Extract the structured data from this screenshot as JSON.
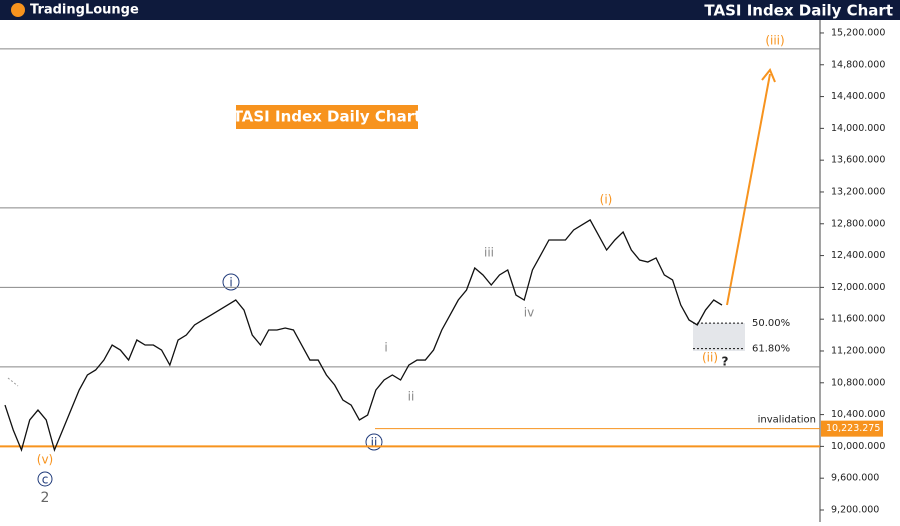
{
  "header": {
    "logo": "TradingLounge",
    "title": "TASI Index Daily Chart"
  },
  "chart_data": {
    "type": "line",
    "title": "TASI Index Daily Chart",
    "series": [
      {
        "color": "#111111",
        "values": [
          10520,
          10206,
          9954,
          10332,
          10457,
          10332,
          9954,
          10206,
          10457,
          10709,
          10898,
          10961,
          11086,
          11275,
          11212,
          11086,
          11338,
          11275,
          11275,
          11212,
          11023,
          11338,
          11401,
          11527,
          11590,
          11652,
          11715,
          11778,
          11841,
          11715,
          11401,
          11275,
          11464,
          11464,
          11489,
          11464,
          11275,
          11086,
          11086,
          10898,
          10772,
          10583,
          10520,
          10332,
          10394,
          10709,
          10835,
          10898,
          10835,
          11023,
          11086,
          11086,
          11212,
          11464,
          11652,
          11841,
          11967,
          12244,
          12156,
          12030,
          12156,
          12219,
          11904,
          11841,
          12219,
          12407,
          12596,
          12596,
          12596,
          12722,
          12785,
          12848,
          12659,
          12470,
          12596,
          12697,
          12470,
          12344,
          12319,
          12370,
          12156,
          12093,
          11778,
          11590,
          11527,
          11715,
          11841,
          11778
        ]
      }
    ],
    "ylim": [
      9049,
      15363
    ],
    "yticks": [
      {
        "value": 9200,
        "label": "9,200.000"
      },
      {
        "value": 9600,
        "label": "9,600.000"
      },
      {
        "value": 10000,
        "label": "10,000.000"
      },
      {
        "value": 10400,
        "label": "10,400.000"
      },
      {
        "value": 10800,
        "label": "10,800.000"
      },
      {
        "value": 11200,
        "label": "11,200.000"
      },
      {
        "value": 11600,
        "label": "11,600.000"
      },
      {
        "value": 12000,
        "label": "12,000.000"
      },
      {
        "value": 12400,
        "label": "12,400.000"
      },
      {
        "value": 12800,
        "label": "12,800.000"
      },
      {
        "value": 13200,
        "label": "13,200.000"
      },
      {
        "value": 13600,
        "label": "13,600.000"
      },
      {
        "value": 14000,
        "label": "14,000.000"
      },
      {
        "value": 14400,
        "label": "14,400.000"
      },
      {
        "value": 14800,
        "label": "14,800.000"
      },
      {
        "value": 15200,
        "label": "15,200.000"
      }
    ],
    "levels": [
      15000,
      13000,
      12000,
      11000
    ],
    "level_color": "#888888",
    "support": {
      "value": 10000,
      "color": "#f7931e"
    },
    "invalidation": {
      "label": "invalidation",
      "value": 10223.275,
      "value_label": "10,223.275",
      "color": "#f7931e"
    },
    "fib_levels": [
      {
        "label": "50.00%",
        "value": 11550
      },
      {
        "label": "61.80%",
        "value": 11230
      }
    ],
    "wave_labels": [
      "(iii)",
      "(i)",
      "i",
      "iii",
      "iv",
      "i",
      "ii",
      "ii",
      "(v)",
      "c",
      "2",
      "(ii)",
      "?"
    ]
  }
}
